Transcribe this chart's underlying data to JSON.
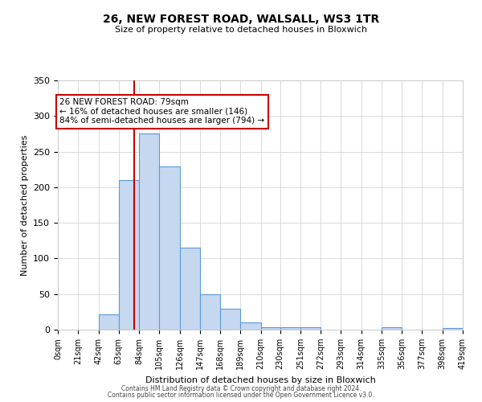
{
  "title": "26, NEW FOREST ROAD, WALSALL, WS3 1TR",
  "subtitle": "Size of property relative to detached houses in Bloxwich",
  "xlabel": "Distribution of detached houses by size in Bloxwich",
  "ylabel": "Number of detached properties",
  "bin_edges": [
    0,
    21,
    42,
    63,
    84,
    105,
    126,
    147,
    168,
    189,
    210,
    230,
    251,
    272,
    293,
    314,
    335,
    356,
    377,
    398,
    419
  ],
  "bar_heights": [
    0,
    0,
    21,
    210,
    275,
    229,
    115,
    50,
    29,
    10,
    3,
    3,
    3,
    0,
    0,
    0,
    3,
    0,
    0,
    2
  ],
  "bar_color": "#c5d8f0",
  "bar_edge_color": "#5b9bd5",
  "property_line_x": 79,
  "property_line_color": "#cc0000",
  "annotation_line1": "26 NEW FOREST ROAD: 79sqm",
  "annotation_line2": "← 16% of detached houses are smaller (146)",
  "annotation_line3": "84% of semi-detached houses are larger (794) →",
  "annotation_box_color": "#ffffff",
  "annotation_box_edge_color": "#cc0000",
  "ylim": [
    0,
    350
  ],
  "yticks": [
    0,
    50,
    100,
    150,
    200,
    250,
    300,
    350
  ],
  "tick_labels": [
    "0sqm",
    "21sqm",
    "42sqm",
    "63sqm",
    "84sqm",
    "105sqm",
    "126sqm",
    "147sqm",
    "168sqm",
    "189sqm",
    "210sqm",
    "230sqm",
    "251sqm",
    "272sqm",
    "293sqm",
    "314sqm",
    "335sqm",
    "356sqm",
    "377sqm",
    "398sqm",
    "419sqm"
  ],
  "footer_line1": "Contains HM Land Registry data © Crown copyright and database right 2024.",
  "footer_line2": "Contains public sector information licensed under the Open Government Licence v3.0.",
  "background_color": "#ffffff",
  "grid_color": "#cccccc",
  "title_fontsize": 10,
  "subtitle_fontsize": 8,
  "ylabel_fontsize": 8,
  "xlabel_fontsize": 8,
  "ytick_fontsize": 8,
  "xtick_fontsize": 7
}
